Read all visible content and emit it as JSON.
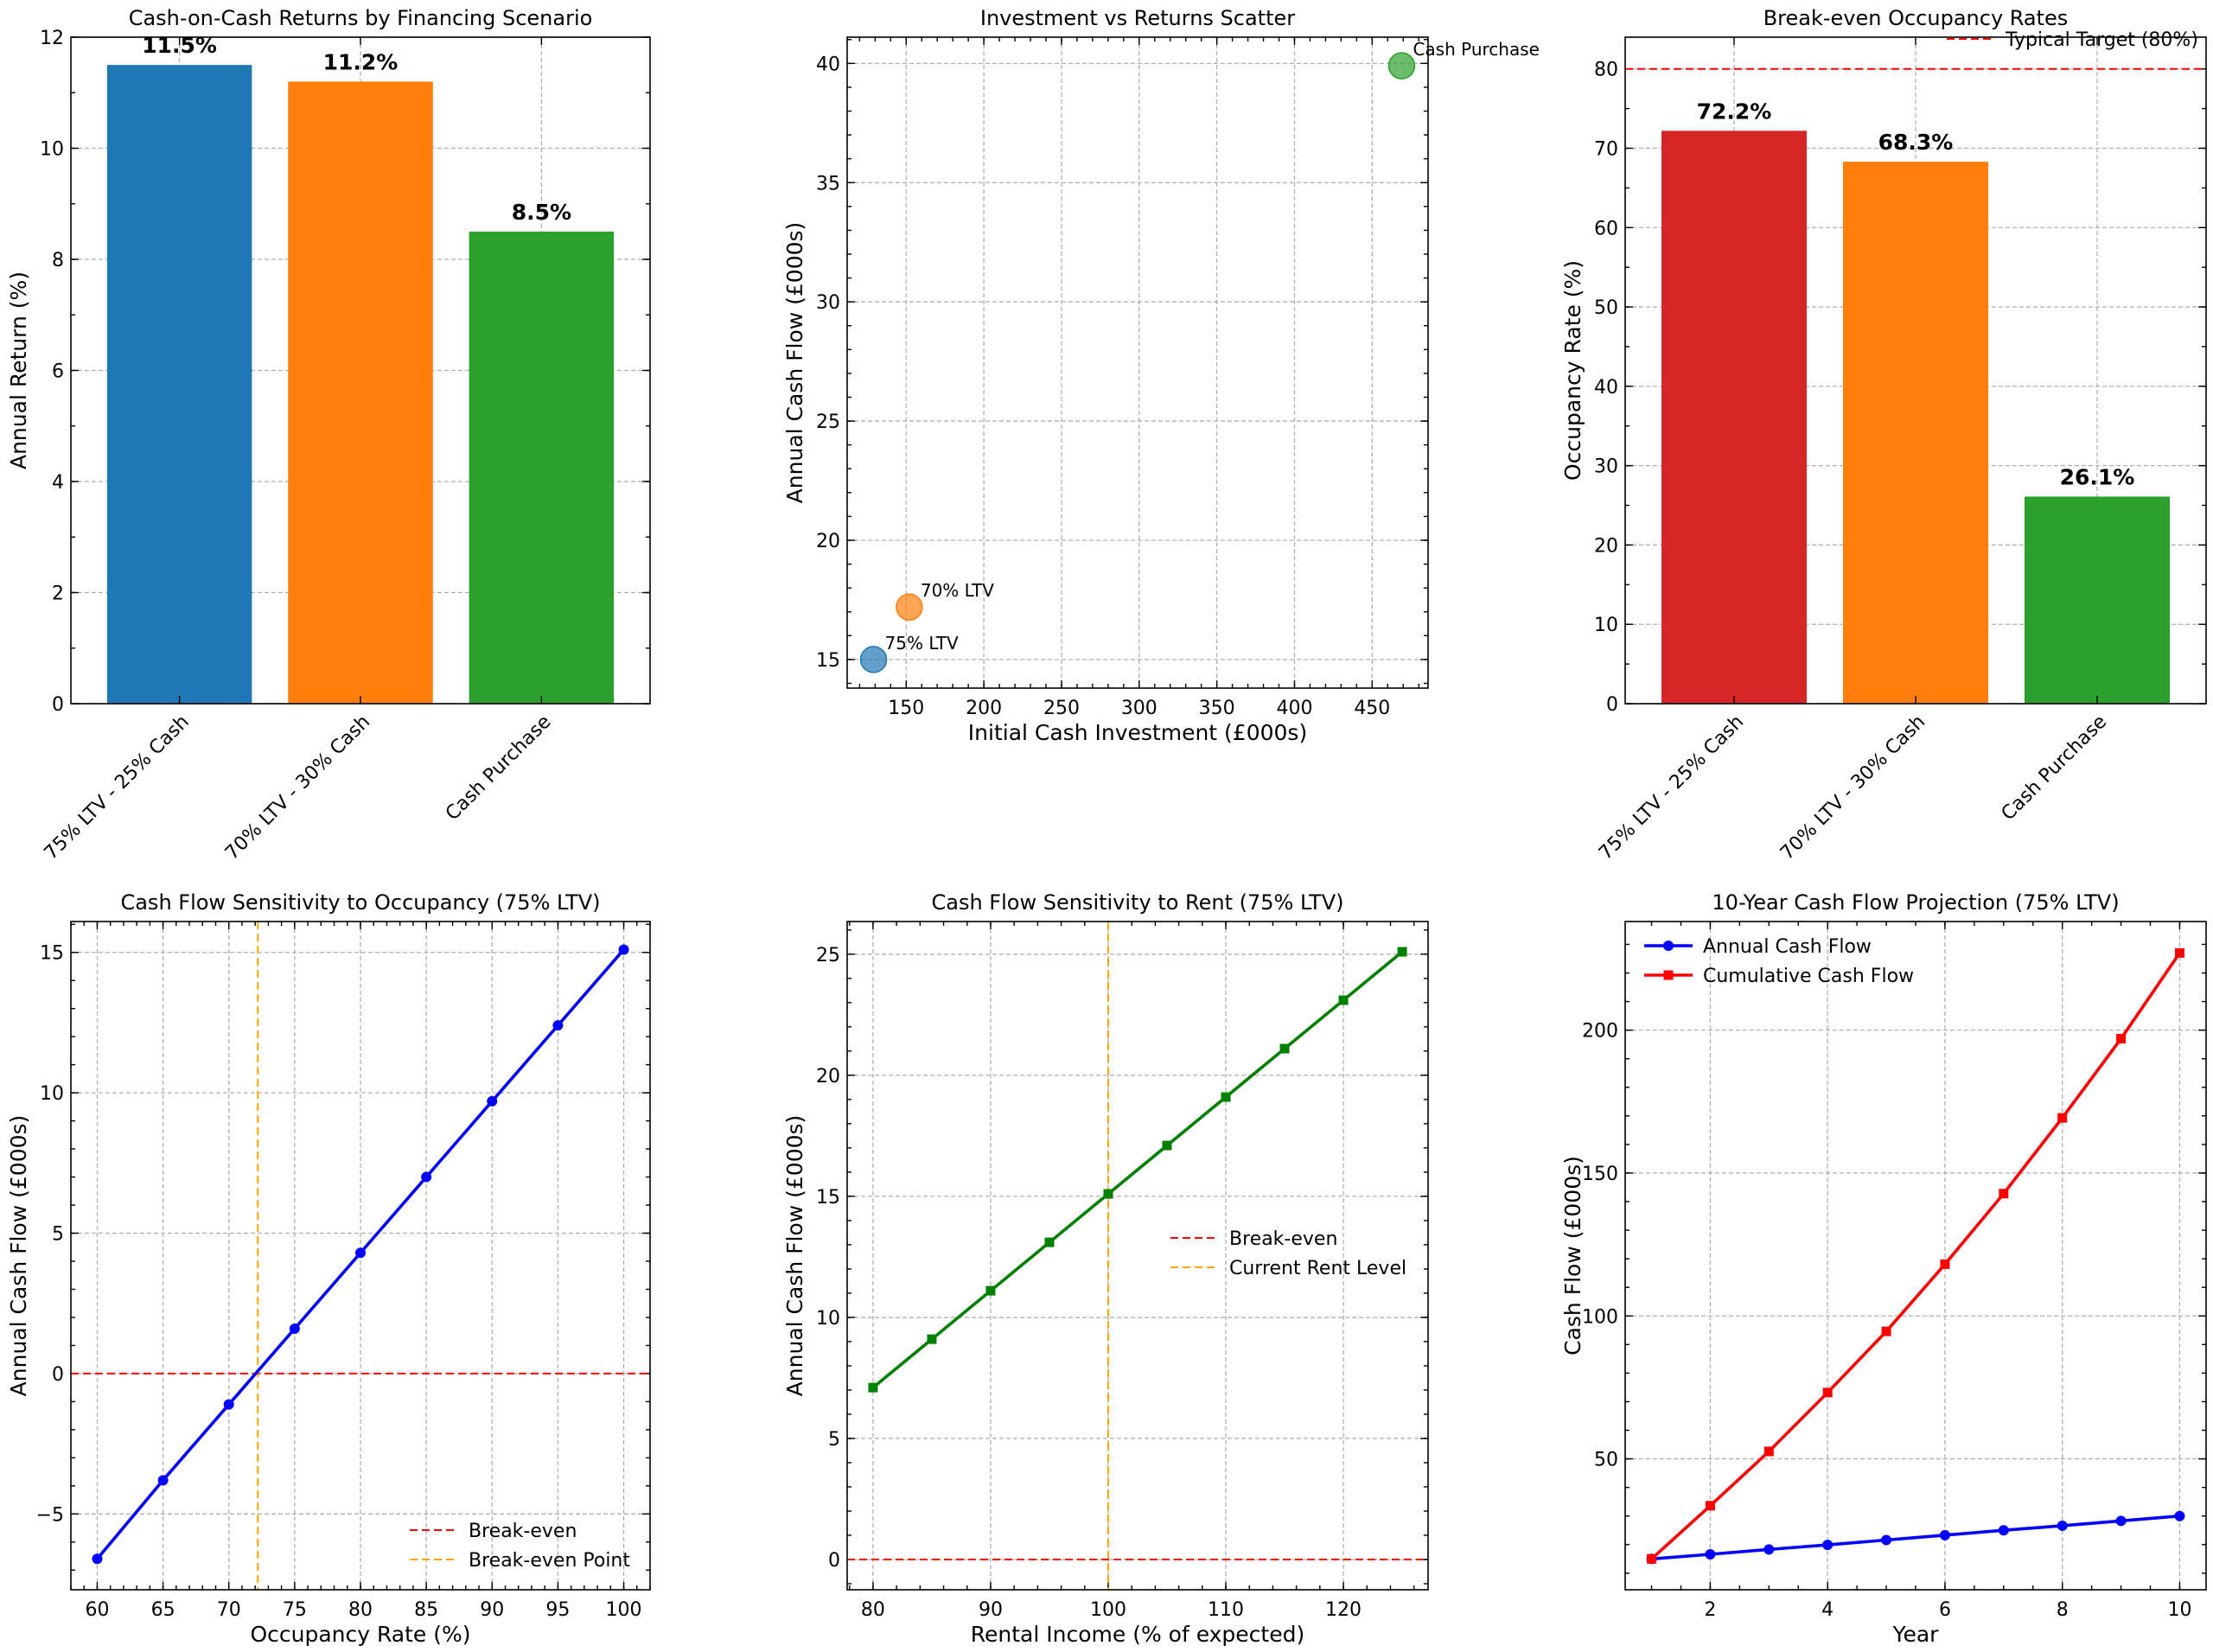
{
  "chart_data": [
    {
      "id": "p1",
      "type": "bar",
      "title": "Cash-on-Cash Returns by Financing Scenario",
      "xlabel": "",
      "ylabel": "Annual Return (%)",
      "categories": [
        "75% LTV - 25% Cash",
        "70% LTV - 30% Cash",
        "Cash Purchase"
      ],
      "values": [
        11.5,
        11.2,
        8.5
      ],
      "value_labels": [
        "11.5%",
        "11.2%",
        "8.5%"
      ],
      "colors": [
        "#1f77b4",
        "#ff7f0e",
        "#2ca02c"
      ],
      "ylim": [
        0,
        12
      ],
      "yticks": [
        0,
        2,
        4,
        6,
        8,
        10,
        12
      ],
      "grid": true
    },
    {
      "id": "p2",
      "type": "scatter",
      "title": "Investment vs Returns Scatter",
      "xlabel": "Initial Cash Investment (£000s)",
      "ylabel": "Annual Cash Flow (£000s)",
      "points": [
        {
          "x": 129,
          "y": 15.0,
          "label": "75% LTV",
          "color": "#1f77b4"
        },
        {
          "x": 152,
          "y": 17.2,
          "label": "70% LTV",
          "color": "#ff7f0e"
        },
        {
          "x": 469,
          "y": 39.9,
          "label": "Cash Purchase",
          "color": "#2ca02c"
        }
      ],
      "xlim": [
        112,
        486
      ],
      "ylim": [
        13.8,
        41.1
      ],
      "xticks": [
        150,
        200,
        250,
        300,
        350,
        400,
        450
      ],
      "yticks": [
        15,
        20,
        25,
        30,
        35,
        40
      ],
      "grid": true
    },
    {
      "id": "p3",
      "type": "bar",
      "title": "Break-even Occupancy Rates",
      "xlabel": "",
      "ylabel": "Occupancy Rate (%)",
      "categories": [
        "75% LTV - 25% Cash",
        "70% LTV - 30% Cash",
        "Cash Purchase"
      ],
      "values": [
        72.2,
        68.3,
        26.1
      ],
      "value_labels": [
        "72.2%",
        "68.3%",
        "26.1%"
      ],
      "colors": [
        "#d62728",
        "#ff7f0e",
        "#2ca02c"
      ],
      "ylim": [
        0,
        84
      ],
      "yticks": [
        0,
        10,
        20,
        30,
        40,
        50,
        60,
        70,
        80
      ],
      "reference_line": {
        "y": 80,
        "label": "Typical Target (80%)",
        "color": "#ff0000"
      },
      "legend": "top-right",
      "grid": true
    },
    {
      "id": "p4",
      "type": "line",
      "title": "Cash Flow Sensitivity to Occupancy (75% LTV)",
      "xlabel": "Occupancy Rate (%)",
      "ylabel": "Annual Cash Flow (£000s)",
      "series": [
        {
          "name": "",
          "color": "#0000ff",
          "marker": "circle",
          "x": [
            60,
            65,
            70,
            75,
            80,
            85,
            90,
            95,
            100
          ],
          "y": [
            -6.6,
            -3.8,
            -1.1,
            1.6,
            4.3,
            7.0,
            9.7,
            12.4,
            15.1
          ]
        }
      ],
      "hline": {
        "y": 0,
        "name": "Break-even",
        "color": "#ff0000"
      },
      "vline": {
        "x": 72.2,
        "name": "Break-even Point",
        "color": "#ffa500"
      },
      "xlim": [
        58,
        102
      ],
      "ylim": [
        -7.7,
        16.1
      ],
      "xticks": [
        60,
        65,
        70,
        75,
        80,
        85,
        90,
        95,
        100
      ],
      "yticks": [
        -5,
        0,
        5,
        10,
        15
      ],
      "legend": "lower-right",
      "grid": true
    },
    {
      "id": "p5",
      "type": "line",
      "title": "Cash Flow Sensitivity to Rent (75% LTV)",
      "xlabel": "Rental Income (% of expected)",
      "ylabel": "Annual Cash Flow (£000s)",
      "series": [
        {
          "name": "",
          "color": "#008000",
          "marker": "square",
          "x": [
            80,
            85,
            90,
            95,
            100,
            105,
            110,
            115,
            120,
            125
          ],
          "y": [
            7.1,
            9.1,
            11.1,
            13.1,
            15.1,
            17.1,
            19.1,
            21.1,
            23.1,
            25.1
          ]
        }
      ],
      "hline": {
        "y": 0,
        "name": "Break-even",
        "color": "#ff0000"
      },
      "vline": {
        "x": 100,
        "name": "Current Rent Level",
        "color": "#ffa500"
      },
      "xlim": [
        77.8,
        127.2
      ],
      "ylim": [
        -1.25,
        26.35
      ],
      "xticks": [
        80,
        90,
        100,
        110,
        120
      ],
      "yticks": [
        0,
        5,
        10,
        15,
        20,
        25
      ],
      "legend": "center-right",
      "grid": true
    },
    {
      "id": "p6",
      "type": "line",
      "title": "10-Year Cash Flow Projection (75% LTV)",
      "xlabel": "Year",
      "ylabel": "Cash Flow (£000s)",
      "series": [
        {
          "name": "Annual Cash Flow",
          "color": "#0000ff",
          "marker": "circle",
          "x": [
            1,
            2,
            3,
            4,
            5,
            6,
            7,
            8,
            9,
            10
          ],
          "y": [
            15.0,
            16.6,
            18.3,
            19.9,
            21.6,
            23.3,
            25.0,
            26.6,
            28.3,
            30.0
          ]
        },
        {
          "name": "Cumulative Cash Flow",
          "color": "#ff0000",
          "marker": "square",
          "x": [
            1,
            2,
            3,
            4,
            5,
            6,
            7,
            8,
            9,
            10
          ],
          "y": [
            15.0,
            33.6,
            52.6,
            73.2,
            94.6,
            118.1,
            142.8,
            169.3,
            197.0,
            227.0
          ]
        }
      ],
      "xlim": [
        0.55,
        10.45
      ],
      "ylim": [
        4.2,
        238.0
      ],
      "xticks": [
        2,
        4,
        6,
        8,
        10
      ],
      "yticks": [
        50,
        100,
        150,
        200
      ],
      "legend": "top-left",
      "grid": true
    }
  ]
}
